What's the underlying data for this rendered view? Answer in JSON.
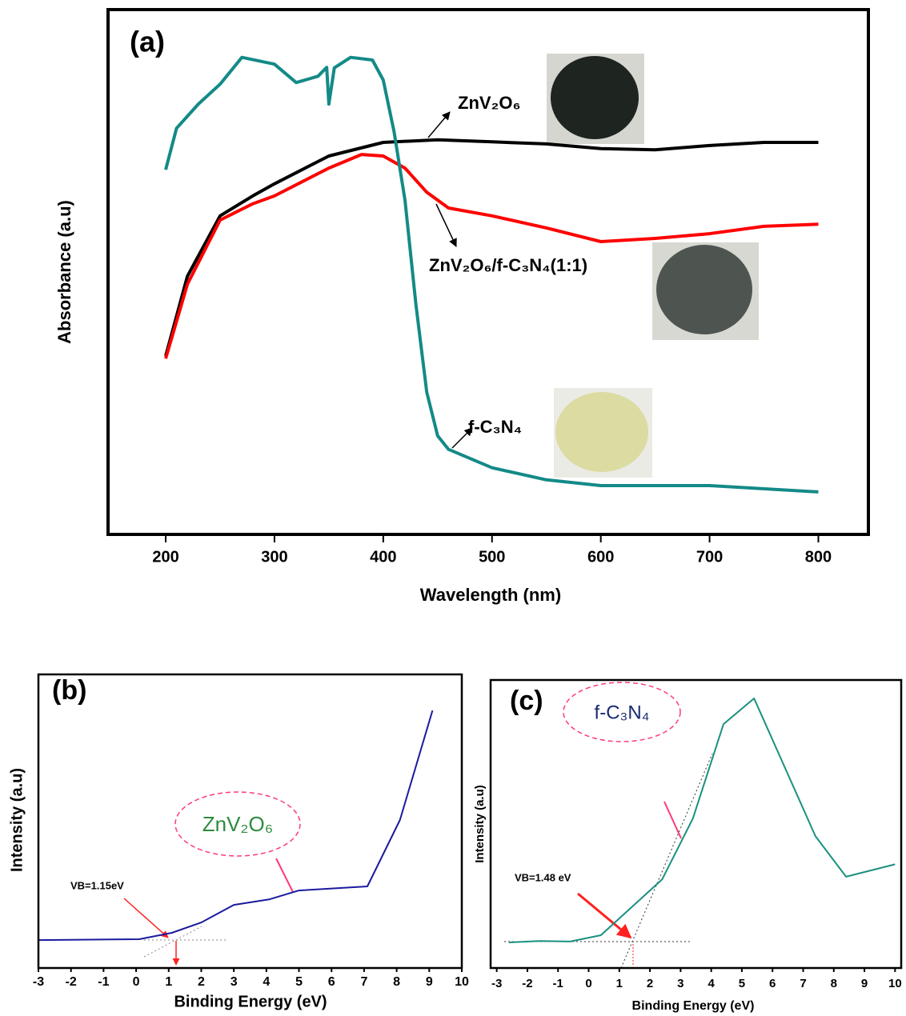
{
  "chart_data": [
    {
      "type": "line",
      "title": "(a)",
      "x_label": "Wavelength (nm)",
      "y_label": "Absorbance (a.u)",
      "xlim": [
        147,
        846
      ],
      "ylim": [
        0,
        100
      ],
      "xticks": [
        200,
        300,
        400,
        500,
        600,
        700,
        800
      ],
      "series": [
        {
          "name": "ZnV₂O₆",
          "color": "#000000",
          "x": [
            200,
            220,
            250,
            280,
            300,
            350,
            400,
            450,
            500,
            550,
            600,
            650,
            700,
            750,
            800
          ],
          "values": [
            34,
            49.2,
            60.7,
            64.5,
            66.8,
            72.1,
            74.7,
            75.2,
            74.8,
            74.4,
            73.5,
            73.3,
            74.1,
            74.7,
            74.7
          ]
        },
        {
          "name": "ZnV₂O₆/f-C₃N₄(1:1)",
          "color": "#ff0000",
          "x": [
            200,
            220,
            250,
            280,
            300,
            350,
            380,
            400,
            420,
            440,
            460,
            500,
            550,
            600,
            650,
            700,
            750,
            800
          ],
          "values": [
            33.5,
            47.7,
            59.9,
            63,
            64.5,
            69.8,
            72.4,
            72.1,
            69.8,
            65.2,
            62.2,
            60.7,
            58.4,
            55.8,
            56.4,
            57.3,
            58.7,
            59.1
          ]
        },
        {
          "name": "f-C₃N₄",
          "color": "#138a87",
          "x": [
            200,
            210,
            230,
            250,
            270,
            300,
            320,
            340,
            348,
            350,
            355,
            370,
            390,
            400,
            410,
            420,
            430,
            440,
            450,
            460,
            500,
            550,
            600,
            700,
            800
          ],
          "values": [
            69.5,
            77.4,
            82,
            85.8,
            90.9,
            89.6,
            86.1,
            87.3,
            89,
            82,
            88.9,
            90.9,
            90.4,
            86.6,
            76.7,
            63.7,
            43.9,
            27.1,
            18.8,
            16.2,
            12.7,
            10.4,
            9.3,
            9.3,
            8.1
          ]
        }
      ]
    },
    {
      "type": "line",
      "title": "(b)",
      "x_label": "Binding Energy (eV)",
      "y_label": "Intensity (a.u)",
      "annotations": [
        "VB=1.15eV"
      ],
      "xlim": [
        -3,
        10
      ],
      "ylim": [
        0,
        100
      ],
      "xticks": [
        -3,
        -2,
        -1,
        0,
        1,
        2,
        3,
        4,
        5,
        6,
        7,
        8,
        9,
        10
      ],
      "series": [
        {
          "name": "ZnV₂O₆",
          "color": "#1a1aa0",
          "x": [
            -3,
            0.1,
            1.1,
            2,
            3,
            4.1,
            5,
            7.1,
            8.1,
            9.1
          ],
          "values": [
            9.5,
            9.8,
            12,
            15.5,
            21.5,
            23.4,
            26.4,
            27.8,
            50.4,
            87.7
          ]
        }
      ]
    },
    {
      "type": "line",
      "title": "(c)",
      "x_label": "Binding Energy (eV)",
      "y_label": "Intensity (a.u)",
      "annotations": [
        "VB=1.48 eV"
      ],
      "xlim": [
        -3.2,
        10.2
      ],
      "ylim": [
        0,
        100
      ],
      "xticks": [
        -3,
        -2,
        -1,
        0,
        1,
        2,
        3,
        4,
        5,
        6,
        7,
        8,
        9,
        10
      ],
      "series": [
        {
          "name": "f-C₃N₄",
          "color": "#1a9080",
          "x": [
            -2.6,
            -1.6,
            -0.6,
            0.4,
            2.4,
            3.4,
            4.4,
            5.4,
            7.4,
            8.4,
            10
          ],
          "values": [
            8.9,
            9.4,
            9.2,
            11.4,
            30.8,
            51.9,
            84.7,
            93.6,
            45.8,
            31.7,
            36
          ]
        }
      ]
    }
  ]
}
